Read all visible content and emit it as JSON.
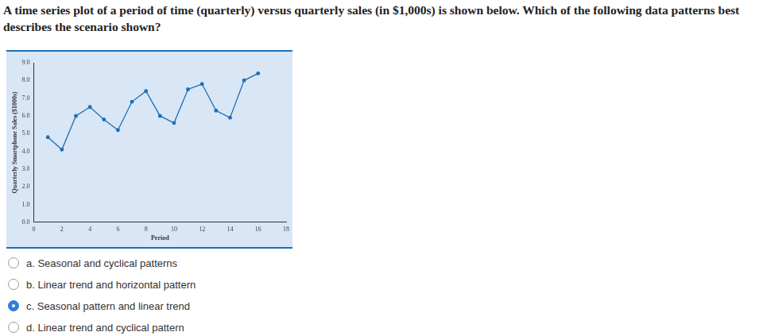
{
  "question": "A time series plot of a period of time (quarterly) versus quarterly sales (in $1,000s) is shown below. Which of the following data patterns best describes the scenario shown?",
  "chart_data": {
    "type": "line",
    "x_label": "Period",
    "y_label": "Quarterly Smartphone Sales ($1000s)",
    "x": [
      1,
      2,
      3,
      4,
      5,
      6,
      7,
      8,
      9,
      10,
      11,
      12,
      13,
      14,
      15,
      16
    ],
    "values": [
      4.8,
      4.1,
      6.0,
      6.5,
      5.8,
      5.2,
      6.8,
      7.4,
      6.0,
      5.6,
      7.5,
      7.8,
      6.3,
      5.9,
      8.0,
      8.4
    ],
    "color": "#1f6fb5",
    "marker": "circle",
    "grid": false,
    "xlim": [
      0,
      18
    ],
    "xticks": [
      0,
      2,
      4,
      6,
      8,
      10,
      12,
      14,
      16,
      18
    ],
    "ylim": [
      0,
      9
    ],
    "yticks": [
      {
        "value": 0,
        "label": "0.0"
      },
      {
        "value": 1,
        "label": "1.0"
      },
      {
        "value": 2,
        "label": "2.0"
      },
      {
        "value": 3,
        "label": "3.0"
      },
      {
        "value": 4,
        "label": "4.0"
      },
      {
        "value": 5,
        "label": "5.0"
      },
      {
        "value": 6,
        "label": "6.0"
      },
      {
        "value": 7,
        "label": "7.0"
      },
      {
        "value": 8,
        "label": "8.0"
      },
      {
        "value": 9,
        "label": "9.0"
      }
    ]
  },
  "options": [
    {
      "text": "a. Seasonal and cyclical patterns",
      "selected": false
    },
    {
      "text": "b. Linear trend and horizontal pattern",
      "selected": false
    },
    {
      "text": "c. Seasonal pattern and linear trend",
      "selected": true
    },
    {
      "text": "d. Linear trend and cyclical pattern",
      "selected": false
    }
  ]
}
